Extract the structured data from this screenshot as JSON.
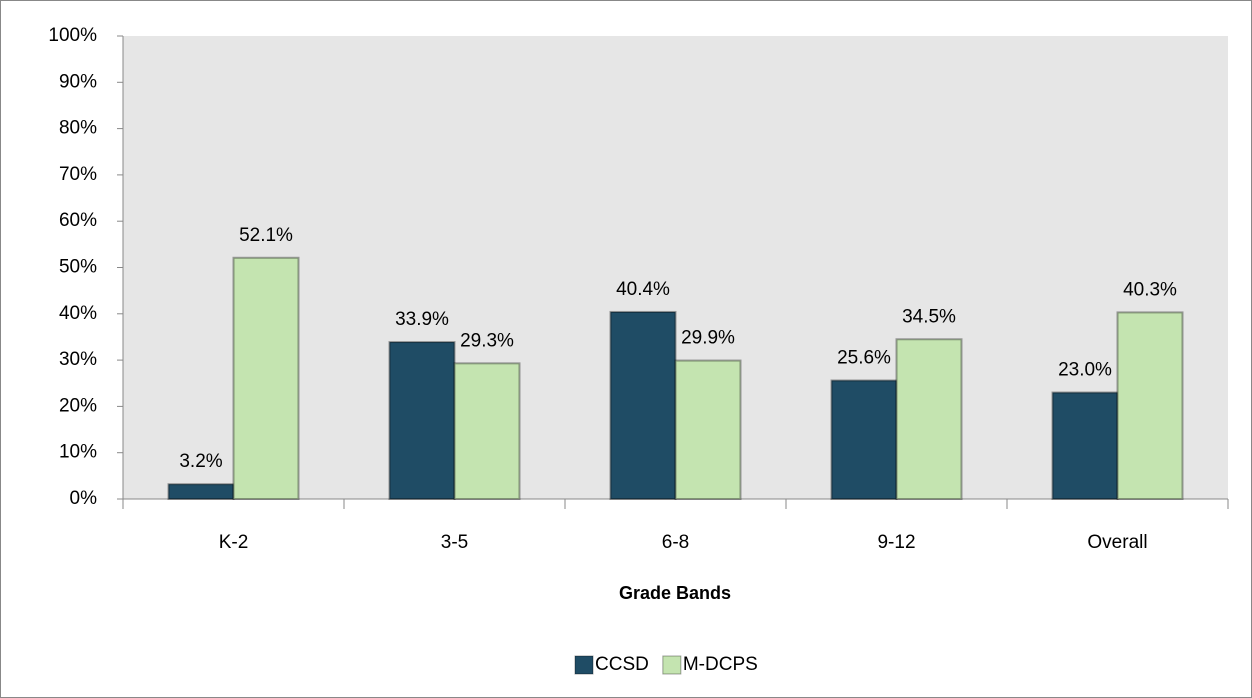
{
  "chart_data": {
    "type": "bar",
    "x_label": "Grade Bands",
    "categories": [
      "K-2",
      "3-5",
      "6-8",
      "9-12",
      "Overall"
    ],
    "series": [
      {
        "name": "CCSD",
        "color": "#1f4c65",
        "values": [
          3.2,
          33.9,
          40.4,
          25.6,
          23.0
        ],
        "value_labels": [
          "3.2%",
          "33.9%",
          "40.4%",
          "25.6%",
          "23.0%"
        ]
      },
      {
        "name": "M-DCPS",
        "color": "#c4e4b0",
        "values": [
          52.1,
          29.3,
          29.9,
          34.5,
          40.3
        ],
        "value_labels": [
          "52.1%",
          "29.3%",
          "29.9%",
          "34.5%",
          "40.3%"
        ]
      }
    ],
    "ylim": [
      0,
      100
    ],
    "yticks": [
      {
        "value": 0,
        "label": "0%"
      },
      {
        "value": 10,
        "label": "10%"
      },
      {
        "value": 20,
        "label": "20%"
      },
      {
        "value": 30,
        "label": "30%"
      },
      {
        "value": 40,
        "label": "40%"
      },
      {
        "value": 50,
        "label": "50%"
      },
      {
        "value": 60,
        "label": "60%"
      },
      {
        "value": 70,
        "label": "70%"
      },
      {
        "value": 80,
        "label": "80%"
      },
      {
        "value": 90,
        "label": "90%"
      },
      {
        "value": 100,
        "label": "100%"
      }
    ],
    "grid": false,
    "legend": "bottom"
  }
}
